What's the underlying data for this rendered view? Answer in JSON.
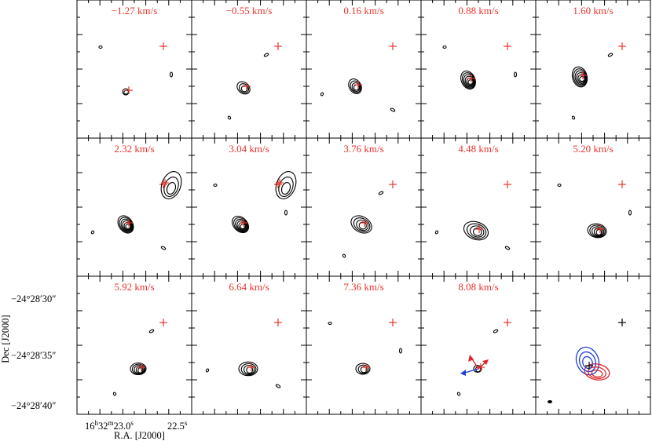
{
  "figure": {
    "panels": [
      {
        "velocity": "−1.27 km/s"
      },
      {
        "velocity": "−0.55 km/s"
      },
      {
        "velocity": "0.16 km/s"
      },
      {
        "velocity": "0.88 km/s"
      },
      {
        "velocity": "1.60 km/s"
      },
      {
        "velocity": "2.32 km/s"
      },
      {
        "velocity": "3.04 km/s"
      },
      {
        "velocity": "3.76 km/s"
      },
      {
        "velocity": "4.48 km/s"
      },
      {
        "velocity": "5.20 km/s"
      },
      {
        "velocity": "5.92 km/s"
      },
      {
        "velocity": "6.64 km/s"
      },
      {
        "velocity": "7.36 km/s"
      },
      {
        "velocity": "8.08 km/s"
      },
      {
        "velocity": ""
      }
    ],
    "y_axis": {
      "label": "Dec [J2000]",
      "ticks": [
        "−24°28′30″",
        "−24°28′35″",
        "−24°28′40″"
      ]
    },
    "x_axis": {
      "label": "R.A. [J2000]",
      "tick_left_main": "16",
      "tick_left_h": "h",
      "tick_left_mid": "32",
      "tick_left_m": "m",
      "tick_left_end": "23.0",
      "tick_left_s": "s",
      "tick_right_main": "22.5",
      "tick_right_s": "s"
    },
    "colors": {
      "label_red": "#e8352e",
      "blue_lobe": "#1f3fd6",
      "red_lobe": "#e0262a",
      "contour": "#000000"
    }
  }
}
